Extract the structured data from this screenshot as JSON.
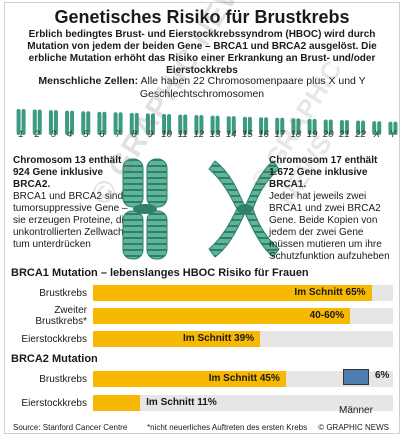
{
  "title": "Genetisches Risiko für Brustkrebs",
  "intro": "Erblich bedingtes Brust- und Eierstockkrebssyndrom (HBOC) wird durch Mutation von jedem der beiden Gene  – BRCA1 und BRCA2 ausgelöst. Die erbliche Mutation erhöht das Risiko einer Erkrankung an Brust- und/oder Eierstockkrebs",
  "cells": {
    "heading": "Menschliche Zellen:",
    "text": "Alle haben 22 Chromosomenpaare plus X und Y Geschlechtschromosomen"
  },
  "chromosome_labels": [
    "1",
    "2",
    "3",
    "4",
    "5",
    "6",
    "7",
    "8",
    "9",
    "10",
    "11",
    "12",
    "13",
    "14",
    "15",
    "16",
    "17",
    "18",
    "19",
    "20",
    "21",
    "22",
    "X",
    "Y"
  ],
  "chromo13": {
    "heading": "Chromosom 13 enthält 924 Gene inklusive BRCA2.",
    "text": "BRCA1 und BRCA2 sind tumorsuppressive Gene – sie erzeugen Proteine, die unkontrollierten Zellwachs-tum unterdrücken"
  },
  "chromo17": {
    "heading": "Chromosom 17 enthält 1.672 Gene inklusive BRCA1.",
    "text": "Jeder hat jeweils zwei BRCA1 und zwei BRCA2 Gene. Beide Kopien von jedem der zwei Gene müssen mutieren um ihre Schutzfunktion aufzuheben"
  },
  "watermark": "© GRAPHIC NEWS",
  "colors": {
    "bar": "#f6b800",
    "band": "#e6e6e6",
    "men": "#4f7db0",
    "chromosome": "#3a9a82"
  },
  "chart_data": [
    {
      "type": "bar",
      "title": "BRCA1 Mutation – lebenslanges HBOC Risiko für Frauen",
      "categories": [
        "Brustkrebs",
        "Zweiter Brustkrebs*",
        "Eierstockkrebs"
      ],
      "values": [
        65,
        60,
        39
      ],
      "labels": [
        "Im Schnitt 65%",
        "40-60%",
        "Im Schnitt 39%"
      ],
      "ylim": [
        0,
        70
      ]
    },
    {
      "type": "bar",
      "title": "BRCA2 Mutation",
      "categories": [
        "Brustkrebs",
        "Eierstockkrebs"
      ],
      "values": [
        45,
        11
      ],
      "labels": [
        "Im Schnitt 45%",
        "Im Schnitt 11%"
      ],
      "ylim": [
        0,
        70
      ],
      "men": {
        "label": "Männer",
        "value": "6%"
      }
    }
  ],
  "footer": {
    "source": "Source: Stanford Cancer Centre",
    "note": "*nicht neuerliches Auftreten des ersten Krebs",
    "credit": "© GRAPHIC NEWS"
  }
}
